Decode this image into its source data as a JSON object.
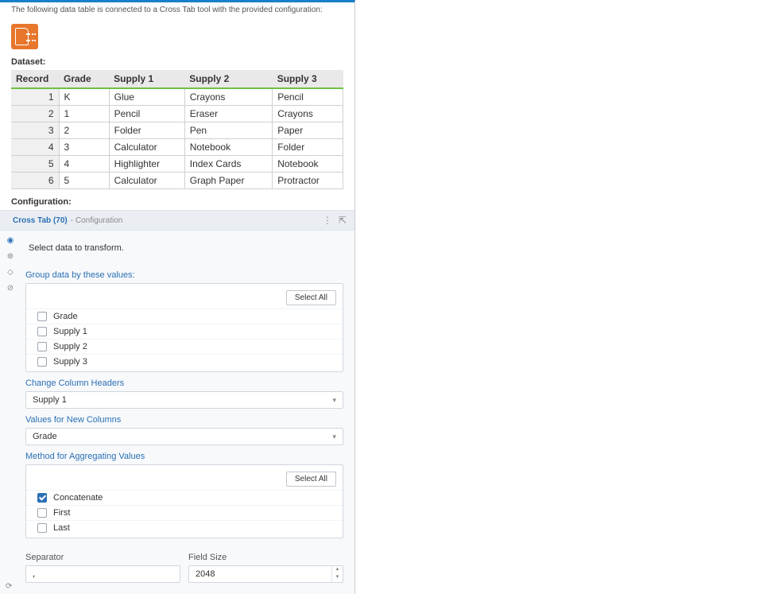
{
  "intro": "The following data table is connected to a Cross Tab tool with the provided configuration:",
  "dataset_label": "Dataset:",
  "configuration_label": "Configuration:",
  "table": {
    "columns": [
      "Record",
      "Grade",
      "Supply 1",
      "Supply 2",
      "Supply 3"
    ],
    "rows": [
      [
        "1",
        "K",
        "Glue",
        "Crayons",
        "Pencil"
      ],
      [
        "2",
        "1",
        "Pencil",
        "Eraser",
        "Crayons"
      ],
      [
        "3",
        "2",
        "Folder",
        "Pen",
        "Paper"
      ],
      [
        "4",
        "3",
        "Calculator",
        "Notebook",
        "Folder"
      ],
      [
        "5",
        "4",
        "Highlighter",
        "Index Cards",
        "Notebook"
      ],
      [
        "6",
        "5",
        "Calculator",
        "Graph Paper",
        "Protractor"
      ]
    ]
  },
  "config": {
    "header_title": "Cross Tab (70)",
    "header_subtitle": "- Configuration",
    "help_text": "Select data to transform.",
    "group_label": "Group data by these values:",
    "select_all": "Select All",
    "group_options": [
      {
        "label": "Grade",
        "checked": false
      },
      {
        "label": "Supply 1",
        "checked": false
      },
      {
        "label": "Supply 2",
        "checked": false
      },
      {
        "label": "Supply 3",
        "checked": false
      }
    ],
    "change_headers_label": "Change Column Headers",
    "change_headers_value": "Supply 1",
    "values_label": "Values for New Columns",
    "values_value": "Grade",
    "agg_label": "Method for Aggregating Values",
    "agg_options": [
      {
        "label": "Concatenate",
        "checked": true
      },
      {
        "label": "First",
        "checked": false
      },
      {
        "label": "Last",
        "checked": false
      }
    ],
    "separator_label": "Separator",
    "separator_value": ",",
    "fieldsize_label": "Field Size",
    "fieldsize_value": "2048"
  }
}
